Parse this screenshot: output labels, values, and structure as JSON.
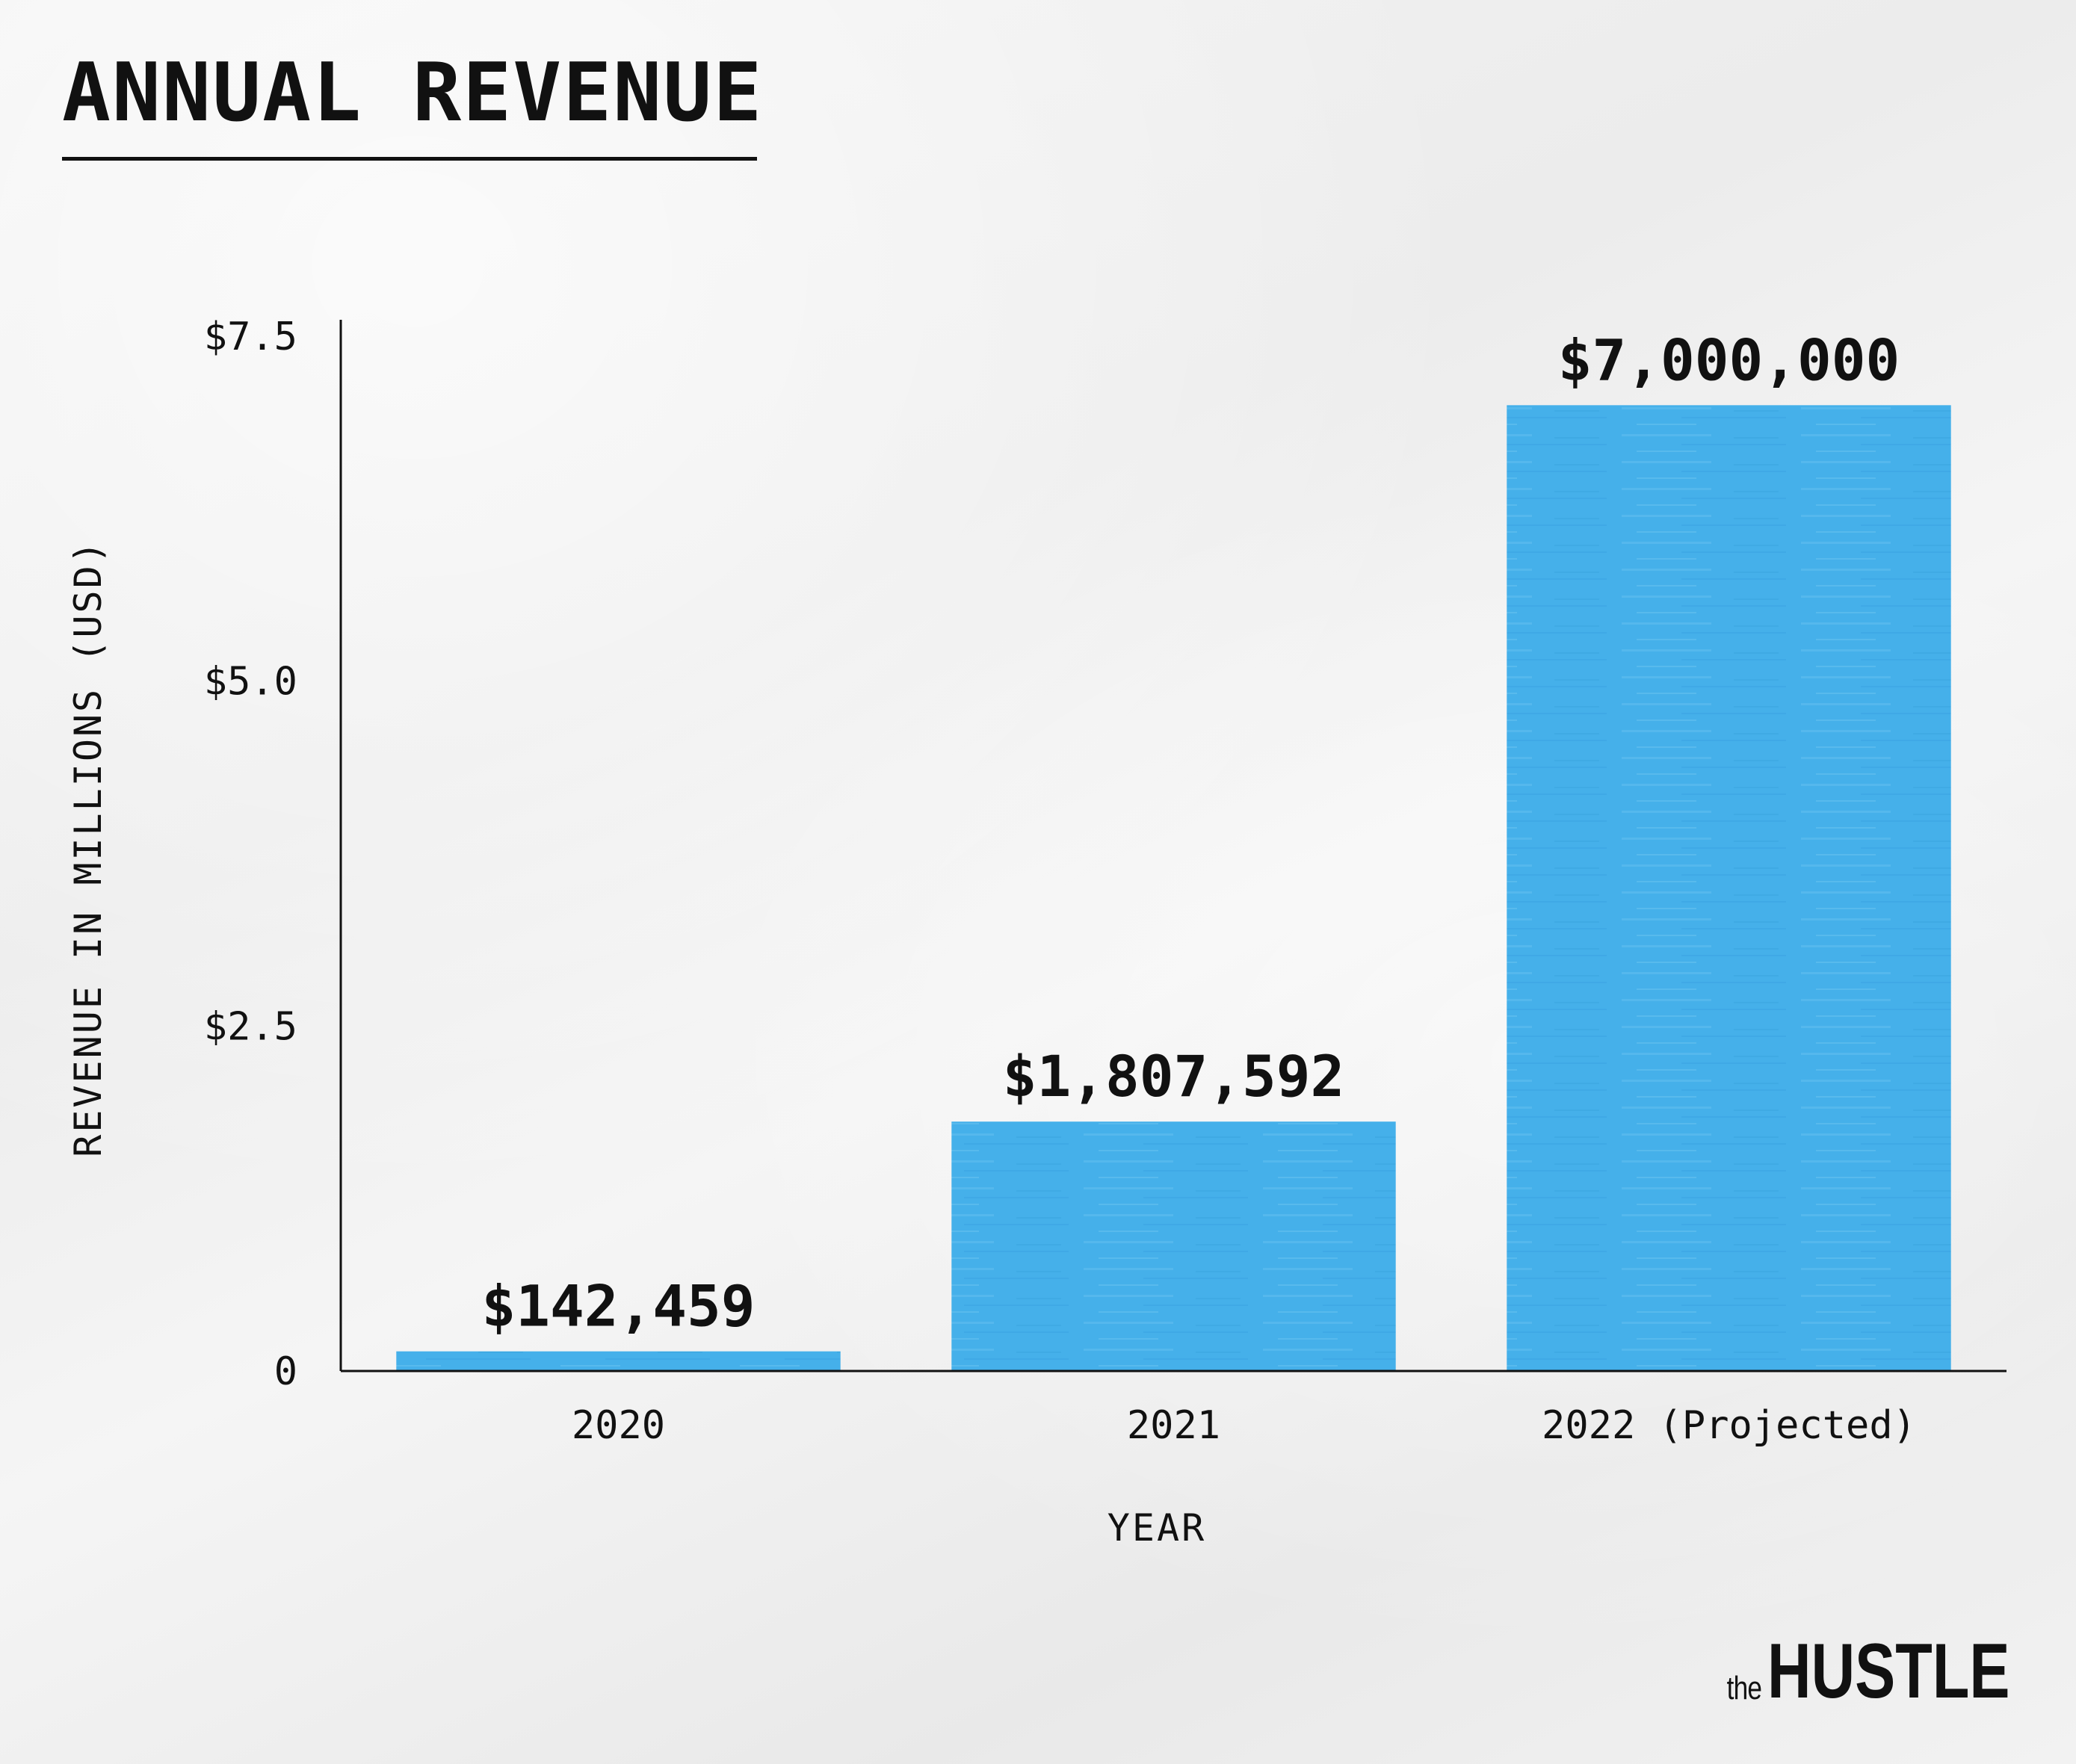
{
  "chart_data": {
    "type": "bar",
    "title": "ANNUAL REVENUE",
    "xlabel": "YEAR",
    "ylabel": "REVENUE IN MILLIONS (USD)",
    "categories": [
      "2020",
      "2021",
      "2022 (Projected)"
    ],
    "values": [
      0.142459,
      1.807592,
      7.0
    ],
    "data_labels": [
      "$142,459",
      "$1,807,592",
      "$7,000,000"
    ],
    "ylim": [
      0,
      7.5
    ],
    "yticks": [
      0,
      2.5,
      5.0,
      7.5
    ],
    "ytick_labels": [
      "0",
      "$2.5",
      "$5.0",
      "$7.5"
    ],
    "grid": false,
    "bar_color": "#45b0ea"
  },
  "brand": {
    "prefix": "the",
    "name": "HUSTLE"
  }
}
